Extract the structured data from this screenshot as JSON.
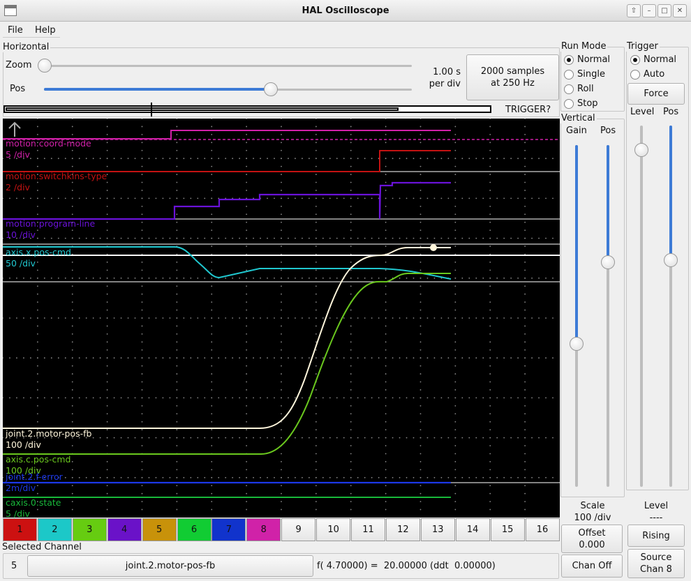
{
  "window": {
    "title": "HAL Oscilloscope",
    "buttons": [
      "⇧",
      "–",
      "□",
      "✕"
    ]
  },
  "menu": {
    "file": "File",
    "help": "Help"
  },
  "horizontal": {
    "label": "Horizontal",
    "zoom_label": "Zoom",
    "pos_label": "Pos",
    "time_per_div_line1": "1.00 s",
    "time_per_div_line2": "per div",
    "samples_line1": "2000 samples",
    "samples_line2": "at 250 Hz",
    "trigger_status": "TRIGGER?",
    "zoom_level": 0.0,
    "pos_level": 0.6
  },
  "run_mode": {
    "label": "Run Mode",
    "options": [
      "Normal",
      "Single",
      "Roll",
      "Stop"
    ],
    "selected": "Normal"
  },
  "trigger": {
    "label": "Trigger",
    "options": [
      "Normal",
      "Auto"
    ],
    "selected": "Normal",
    "force_label": "Force",
    "level_label": "Level",
    "pos_label": "Pos",
    "level_footer_label": "Level",
    "level_value": "----",
    "rising_label": "Rising",
    "source_line1": "Source",
    "source_line2": "Chan  8"
  },
  "vertical": {
    "label": "Vertical",
    "gain_label": "Gain",
    "pos_label": "Pos",
    "scale_label": "Scale",
    "scale_value": "100 /div",
    "offset_line1": "Offset",
    "offset_line2": "0.000",
    "chan_off_label": "Chan Off"
  },
  "traces": [
    {
      "name": "motion.coord-mode",
      "scale": "5 /div",
      "color": "#d020a8"
    },
    {
      "name": "motion.switchkins-type",
      "scale": "2 /div",
      "color": "#c41212"
    },
    {
      "name": "motion.program-line",
      "scale": "10 /div",
      "color": "#6a12d8"
    },
    {
      "name": "axis.x.pos-cmd",
      "scale": "50 /div",
      "color": "#20c8d0"
    },
    {
      "name": "joint.2.motor-pos-fb",
      "scale": "100 /div",
      "color": "#fff6dc"
    },
    {
      "name": "axis.c.pos-cmd",
      "scale": "100 /div",
      "color": "#6ac81e"
    },
    {
      "name": "joint.2.f-error",
      "scale": "2m/div",
      "color": "#1c38e8"
    },
    {
      "name": "caxis.0.state",
      "scale": "5 /div",
      "color": "#18b83a"
    }
  ],
  "channels": [
    {
      "label": "1",
      "color": "#cc1111"
    },
    {
      "label": "2",
      "color": "#1cc8c8"
    },
    {
      "label": "3",
      "color": "#66cc11"
    },
    {
      "label": "4",
      "color": "#6a12c8"
    },
    {
      "label": "5",
      "color": "#c8920a"
    },
    {
      "label": "6",
      "color": "#11cc33"
    },
    {
      "label": "7",
      "color": "#1133cc"
    },
    {
      "label": "8",
      "color": "#d022a8"
    },
    {
      "label": "9",
      "color": ""
    },
    {
      "label": "10",
      "color": ""
    },
    {
      "label": "11",
      "color": ""
    },
    {
      "label": "12",
      "color": ""
    },
    {
      "label": "13",
      "color": ""
    },
    {
      "label": "14",
      "color": ""
    },
    {
      "label": "15",
      "color": ""
    },
    {
      "label": "16",
      "color": ""
    }
  ],
  "selected_channel": {
    "label": "Selected Channel",
    "number": "5",
    "name": "joint.2.motor-pos-fb",
    "readout": "f( 4.70000) =  20.00000 (ddt  0.00000)"
  }
}
